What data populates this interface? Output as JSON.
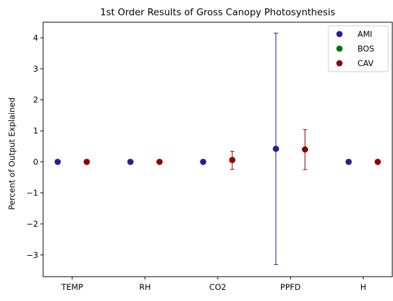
{
  "chart_data": {
    "type": "scatter",
    "title": "1st Order Results of Gross Canopy Photosynthesis",
    "xlabel": "",
    "ylabel": "Percent of Output Explained",
    "categories": [
      "TEMP",
      "RH",
      "CO2",
      "PPFD",
      "H"
    ],
    "ylim": [
      -3.7,
      4.5
    ],
    "yticks": [
      -3,
      -2,
      -1,
      0,
      1,
      2,
      3,
      4
    ],
    "ytick_labels": [
      "−3",
      "−2",
      "−1",
      "0",
      "1",
      "2",
      "3",
      "4"
    ],
    "grid": false,
    "legend_position": "top-right",
    "series": [
      {
        "name": "AMI",
        "color": "#2a1c96",
        "offset": -0.2,
        "values": [
          0.0,
          0.0,
          0.0,
          0.42,
          0.0
        ],
        "errors": [
          [
            0,
            0
          ],
          [
            0,
            0
          ],
          [
            0,
            0
          ],
          [
            3.73,
            3.73
          ],
          [
            0,
            0
          ]
        ]
      },
      {
        "name": "BOS",
        "color": "#007000",
        "offset": 0.0,
        "values": [],
        "errors": []
      },
      {
        "name": "CAV",
        "color": "#8b0000",
        "offset": 0.2,
        "values": [
          0.0,
          0.0,
          0.06,
          0.4,
          0.0
        ],
        "errors": [
          [
            0,
            0
          ],
          [
            0,
            0
          ],
          [
            0.3,
            0.28
          ],
          [
            0.65,
            0.64
          ],
          [
            0,
            0
          ]
        ]
      }
    ]
  }
}
